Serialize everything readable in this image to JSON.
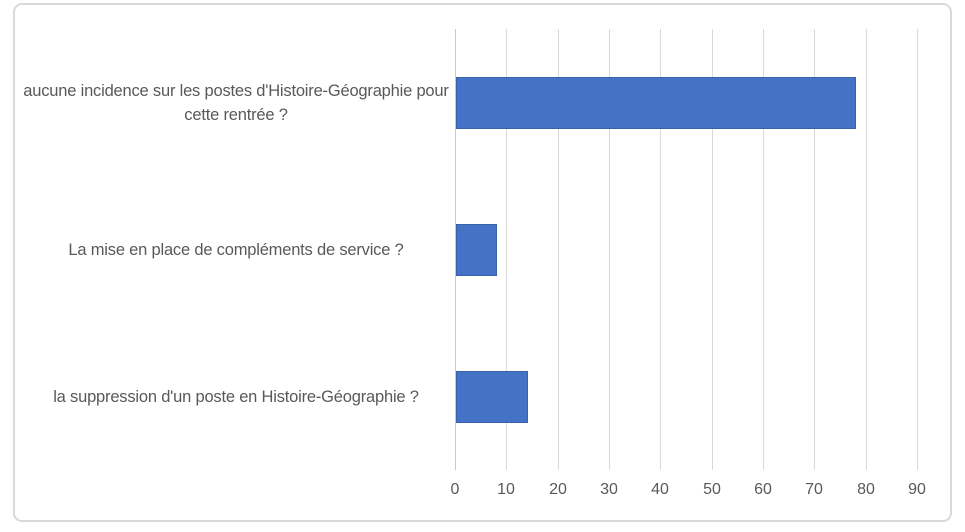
{
  "chart_data": {
    "type": "bar",
    "orientation": "horizontal",
    "title": "",
    "xlabel": "",
    "ylabel": "",
    "categories": [
      "aucune incidence sur les postes d'Histoire-Géographie pour cette rentrée ?",
      "La mise en place de compléments de service ?",
      "la suppression d'un poste en Histoire-Géographie ?"
    ],
    "values": [
      78,
      8,
      14
    ],
    "xlim": [
      0,
      90
    ],
    "x_ticks": [
      "0",
      "10",
      "20",
      "30",
      "40",
      "50",
      "60",
      "70",
      "80",
      "90"
    ],
    "grid": "vertical-gridlines-on",
    "legend": "none",
    "colors": {
      "bar_fill": "#4472C4",
      "bar_border": "#3961A8",
      "gridline": "#D9D9D9",
      "axis_line": "#C9C9C9",
      "axis_text": "#595959",
      "frame_border": "#D9D9D9",
      "background": "#FFFFFF"
    }
  }
}
